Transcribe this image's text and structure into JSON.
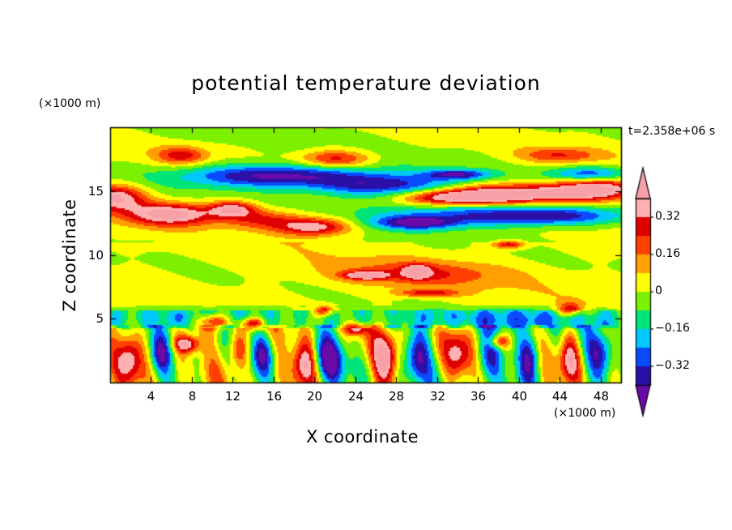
{
  "chart_data": {
    "type": "heatmap",
    "title": "potential temperature deviation",
    "xlabel": "X coordinate",
    "ylabel": "Z coordinate",
    "x_unit": "(×1000 m)",
    "y_unit": "(×1000 m)",
    "time_label": "t=2.358e+06 s",
    "xlim": [
      0,
      50
    ],
    "ylim": [
      0,
      20
    ],
    "x_ticks": [
      4,
      8,
      12,
      16,
      20,
      24,
      28,
      32,
      36,
      40,
      44,
      48
    ],
    "y_ticks": [
      5,
      10,
      15
    ],
    "colorbar": {
      "levels": [
        -0.4,
        -0.32,
        -0.24,
        -0.16,
        -0.08,
        0,
        0.08,
        0.16,
        0.24,
        0.32,
        0.4
      ],
      "tick_values": [
        -0.32,
        -0.16,
        0,
        0.16,
        0.32
      ],
      "tick_labels": [
        "−0.32",
        "−0.16",
        "0",
        "0.16",
        "0.32"
      ],
      "colors": [
        "#6a0aa8",
        "#2a10a6",
        "#0a4bff",
        "#00c8ff",
        "#00e57a",
        "#7df000",
        "#ffff00",
        "#ffa000",
        "#ff4000",
        "#e00000",
        "#ffb0b0",
        "#f8a0a8"
      ],
      "extend": "both"
    },
    "features": [
      {
        "x": 6,
        "z": 13.2,
        "sx": 4.5,
        "sz": 0.9,
        "v": 0.45
      },
      {
        "x": 0.5,
        "z": 14.5,
        "sx": 3,
        "sz": 1.0,
        "v": 0.42
      },
      {
        "x": 12,
        "z": 13.6,
        "sx": 2.2,
        "sz": 0.6,
        "v": 0.36
      },
      {
        "x": 20,
        "z": 12.2,
        "sx": 3.5,
        "sz": 0.7,
        "v": 0.4
      },
      {
        "x": 15,
        "z": 12.8,
        "sx": 4,
        "sz": 0.8,
        "v": 0.25
      },
      {
        "x": 41,
        "z": 14.8,
        "sx": 8,
        "sz": 0.8,
        "v": 0.45
      },
      {
        "x": 34,
        "z": 14.5,
        "sx": 5,
        "sz": 0.6,
        "v": 0.4
      },
      {
        "x": 48,
        "z": 15.3,
        "sx": 4,
        "sz": 0.9,
        "v": 0.36
      },
      {
        "x": 16,
        "z": 16.2,
        "sx": 9,
        "sz": 0.9,
        "v": -0.45
      },
      {
        "x": 27,
        "z": 15.4,
        "sx": 7,
        "sz": 0.9,
        "v": -0.38
      },
      {
        "x": 36,
        "z": 13.2,
        "sx": 10,
        "sz": 0.9,
        "v": -0.3
      },
      {
        "x": 44,
        "z": 13.0,
        "sx": 7,
        "sz": 0.7,
        "v": -0.26
      },
      {
        "x": 30,
        "z": 12.5,
        "sx": 4,
        "sz": 0.5,
        "v": -0.36
      },
      {
        "x": 7,
        "z": 17.8,
        "sx": 2.5,
        "sz": 0.7,
        "v": 0.26
      },
      {
        "x": 22,
        "z": 17.5,
        "sx": 3.5,
        "sz": 0.7,
        "v": 0.3
      },
      {
        "x": 44,
        "z": 17.8,
        "sx": 4,
        "sz": 0.6,
        "v": 0.22
      },
      {
        "x": 34,
        "z": 16.3,
        "sx": 3,
        "sz": 0.4,
        "v": -0.36
      },
      {
        "x": 47,
        "z": 16.3,
        "sx": 4,
        "sz": 0.6,
        "v": -0.34
      },
      {
        "x": 30,
        "z": 8.5,
        "sx": 8,
        "sz": 1.0,
        "v": 0.2
      },
      {
        "x": 25,
        "z": 8.4,
        "sx": 2,
        "sz": 0.3,
        "v": 0.4
      },
      {
        "x": 30,
        "z": 8.7,
        "sx": 1.2,
        "sz": 0.5,
        "v": 0.36
      },
      {
        "x": 39,
        "z": 10.8,
        "sx": 1.5,
        "sz": 0.3,
        "v": 0.3
      },
      {
        "x": 31,
        "z": 7.0,
        "sx": 3,
        "sz": 0.3,
        "v": 0.26
      },
      {
        "x": 9,
        "z": 5.2,
        "sx": 8,
        "sz": 0.8,
        "v": -0.14
      },
      {
        "x": 40,
        "z": 5.0,
        "sx": 10,
        "sz": 0.8,
        "v": -0.14
      },
      {
        "x": 10,
        "z": 4.8,
        "sx": 1.5,
        "sz": 0.6,
        "v": 0.4
      },
      {
        "x": 14,
        "z": 4.6,
        "sx": 1.2,
        "sz": 0.5,
        "v": 0.36
      },
      {
        "x": 21,
        "z": 5.6,
        "sx": 1.0,
        "sz": 0.4,
        "v": 0.3
      },
      {
        "x": 24,
        "z": 4.2,
        "sx": 1.0,
        "sz": 0.5,
        "v": 0.36
      },
      {
        "x": 45,
        "z": 5.7,
        "sx": 1.2,
        "sz": 0.5,
        "v": 0.32
      },
      {
        "x": 7.5,
        "z": 3.0,
        "sx": 1.3,
        "sz": 0.7,
        "v": 0.42
      },
      {
        "x": 2,
        "z": 2.0,
        "sx": 1.2,
        "sz": 2.0,
        "v": 0.36
      },
      {
        "x": 5,
        "z": 2.2,
        "sx": 1.0,
        "sz": 1.5,
        "v": -0.3
      },
      {
        "x": 12.5,
        "z": 2.5,
        "sx": 1.0,
        "sz": 1.5,
        "v": 0.3
      },
      {
        "x": 15,
        "z": 2.2,
        "sx": 1.0,
        "sz": 1.6,
        "v": -0.28
      },
      {
        "x": 19,
        "z": 1.5,
        "sx": 1.2,
        "sz": 1.8,
        "v": 0.4
      },
      {
        "x": 21.5,
        "z": 2.0,
        "sx": 1.5,
        "sz": 2.0,
        "v": -0.36
      },
      {
        "x": 27,
        "z": 2.0,
        "sx": 1.2,
        "sz": 2.0,
        "v": 0.4
      },
      {
        "x": 30,
        "z": 2.0,
        "sx": 1.2,
        "sz": 2.0,
        "v": -0.34
      },
      {
        "x": 34,
        "z": 2.2,
        "sx": 1.2,
        "sz": 2.0,
        "v": 0.3
      },
      {
        "x": 37,
        "z": 2.0,
        "sx": 1.4,
        "sz": 2.0,
        "v": -0.3
      },
      {
        "x": 41,
        "z": 1.8,
        "sx": 1.2,
        "sz": 2.0,
        "v": -0.38
      },
      {
        "x": 45,
        "z": 2.0,
        "sx": 1.0,
        "sz": 2.0,
        "v": 0.34
      },
      {
        "x": 48,
        "z": 2.2,
        "sx": 1.2,
        "sz": 2.0,
        "v": -0.3
      },
      {
        "x": 38,
        "z": 3.2,
        "sx": 1.0,
        "sz": 0.6,
        "v": 0.36
      }
    ]
  }
}
